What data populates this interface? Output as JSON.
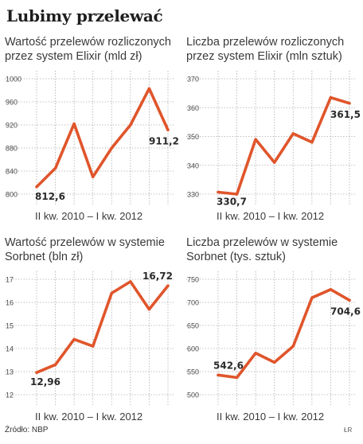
{
  "title": "Lubimy przelewać",
  "source": "Źródło: NBP",
  "credit": "ŁR",
  "series_color": "#e0552b",
  "chart_data": [
    {
      "type": "line",
      "title_lines": [
        "Wartość przelewów rozliczonych",
        "przez system Elixir (mld zł)"
      ],
      "x_range_label": "II kw. 2010 – I kw. 2012",
      "yticks": [
        "1000",
        "960",
        "920",
        "880",
        "840",
        "800"
      ],
      "ylim": [
        800,
        1000
      ],
      "values": [
        812.6,
        845,
        922,
        830,
        880,
        920,
        983,
        911.2
      ],
      "first_label": "812,6",
      "last_label": "911,2",
      "grid": true
    },
    {
      "type": "line",
      "title_lines": [
        "Liczba przelewów rozliczonych",
        "przez system Elixir (mln sztuk)"
      ],
      "x_range_label": "II kw. 2010 – I kw. 2012",
      "yticks": [
        "370",
        "360",
        "350",
        "340",
        "330"
      ],
      "ylim": [
        330,
        370
      ],
      "values": [
        330.7,
        330,
        349,
        341,
        351,
        348,
        363.5,
        361.5
      ],
      "first_label": "330,7",
      "last_label": "361,5",
      "grid": true
    },
    {
      "type": "line",
      "title_lines": [
        "Wartość przelewów w systemie",
        "Sorbnet (bln zł)"
      ],
      "x_range_label": "II kw. 2010 – I kw. 2012",
      "yticks": [
        "17",
        "16",
        "15",
        "14",
        "13",
        "12"
      ],
      "ylim": [
        12,
        17
      ],
      "values": [
        12.96,
        13.3,
        14.4,
        14.1,
        16.4,
        16.9,
        15.7,
        16.72
      ],
      "first_label": "12,96",
      "last_label": "16,72",
      "grid": true
    },
    {
      "type": "line",
      "title_lines": [
        "Liczba przelewów w systemie",
        "Sorbnet (tys. sztuk)"
      ],
      "x_range_label": "II kw. 2010 – I kw. 2012",
      "yticks": [
        "750",
        "700",
        "650",
        "600",
        "550",
        "500"
      ],
      "ylim": [
        500,
        750
      ],
      "values": [
        542.6,
        537,
        590,
        570,
        605,
        710,
        728,
        704.6
      ],
      "first_label": "542,6",
      "last_label": "704,6",
      "grid": true
    }
  ]
}
